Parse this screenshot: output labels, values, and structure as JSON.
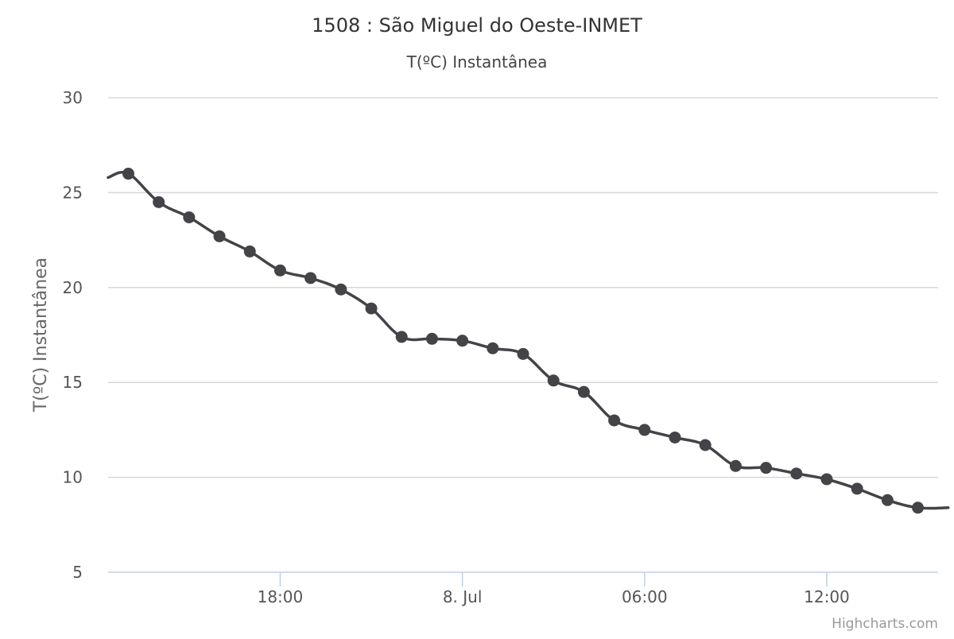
{
  "chart_data": {
    "type": "line",
    "title": "1508 : São Miguel do Oeste-INMET",
    "subtitle": "T(ºC) Instantânea",
    "ylabel": "T(ºC) Instantânea",
    "xlabel": "",
    "ylim": [
      5,
      30
    ],
    "yticks": [
      "5",
      "10",
      "15",
      "20",
      "25",
      "30"
    ],
    "xlim": [
      "2023-07-07 12:20",
      "2023-07-08 15:40"
    ],
    "xticks": [
      {
        "label": "18:00",
        "value": "2023-07-07 18:00"
      },
      {
        "label": "8. Jul",
        "value": "2023-07-08 00:00"
      },
      {
        "label": "06:00",
        "value": "2023-07-08 06:00"
      },
      {
        "label": "12:00",
        "value": "2023-07-08 12:00"
      }
    ],
    "grid": true,
    "legend": "none",
    "color": "#434348",
    "series": [
      {
        "x": [
          "2023-07-07 12:20",
          "2023-07-07 13:00",
          "2023-07-07 14:00",
          "2023-07-07 15:00",
          "2023-07-07 16:00",
          "2023-07-07 17:00",
          "2023-07-07 18:00",
          "2023-07-07 19:00",
          "2023-07-07 20:00",
          "2023-07-07 21:00",
          "2023-07-07 22:00",
          "2023-07-07 23:00",
          "2023-07-08 00:00",
          "2023-07-08 01:00",
          "2023-07-08 02:00",
          "2023-07-08 03:00",
          "2023-07-08 04:00",
          "2023-07-08 05:00",
          "2023-07-08 06:00",
          "2023-07-08 07:00",
          "2023-07-08 08:00",
          "2023-07-08 09:00",
          "2023-07-08 10:00",
          "2023-07-08 11:00",
          "2023-07-08 12:00",
          "2023-07-08 13:00",
          "2023-07-08 14:00",
          "2023-07-08 15:00",
          "2023-07-08 16:00"
        ],
        "values": [
          25.8,
          26.0,
          24.5,
          23.7,
          22.7,
          21.9,
          20.9,
          20.5,
          19.9,
          18.9,
          17.4,
          17.3,
          17.2,
          16.8,
          16.5,
          15.1,
          14.5,
          13.0,
          12.5,
          12.1,
          11.7,
          10.6,
          10.5,
          10.2,
          9.9,
          9.4,
          8.8,
          8.4,
          8.4
        ],
        "markers": [
          false,
          true,
          true,
          true,
          true,
          true,
          true,
          true,
          true,
          true,
          true,
          true,
          true,
          true,
          true,
          true,
          true,
          true,
          true,
          true,
          true,
          true,
          true,
          true,
          true,
          true,
          true,
          true,
          false
        ]
      }
    ]
  },
  "credits": "Highcharts.com"
}
